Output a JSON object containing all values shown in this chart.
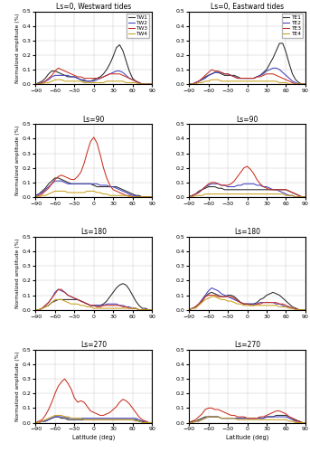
{
  "titles_left": [
    "Ls=0, Westward tides",
    "Ls=90",
    "Ls=180",
    "Ls=270"
  ],
  "titles_right": [
    "Ls=0, Eastward tides",
    "Ls=90",
    "Ls=180",
    "Ls=270"
  ],
  "legend_left": [
    "TW1",
    "TW2",
    "TW3",
    "TW4"
  ],
  "legend_right": [
    "TE1",
    "TE2",
    "TE3",
    "TE4"
  ],
  "colors": [
    "#2a2a2a",
    "#4040c0",
    "#c83020",
    "#c8a020"
  ],
  "ylabel": "Normalized amplitude (%)",
  "xlabel": "Latitude (deg)",
  "xlim": [
    -90,
    90
  ],
  "ylim": [
    0,
    0.5
  ],
  "yticks": [
    0.0,
    0.1,
    0.2,
    0.3,
    0.4,
    0.5
  ],
  "xticks": [
    -90,
    -60,
    -30,
    0,
    30,
    60,
    90
  ],
  "lat": [
    -90,
    -85,
    -80,
    -75,
    -70,
    -65,
    -60,
    -55,
    -50,
    -45,
    -40,
    -35,
    -30,
    -25,
    -20,
    -15,
    -10,
    -5,
    0,
    5,
    10,
    15,
    20,
    25,
    30,
    35,
    40,
    45,
    50,
    55,
    60,
    65,
    70,
    75,
    80,
    85,
    90
  ],
  "data": {
    "W_0": [
      [
        0.0,
        0.01,
        0.02,
        0.04,
        0.07,
        0.09,
        0.09,
        0.08,
        0.07,
        0.06,
        0.05,
        0.05,
        0.05,
        0.04,
        0.03,
        0.02,
        0.02,
        0.02,
        0.03,
        0.04,
        0.05,
        0.07,
        0.1,
        0.14,
        0.19,
        0.25,
        0.27,
        0.23,
        0.16,
        0.09,
        0.04,
        0.02,
        0.01,
        0.0,
        0.0,
        0.0,
        0.0
      ],
      [
        0.0,
        0.0,
        0.01,
        0.02,
        0.03,
        0.05,
        0.06,
        0.06,
        0.06,
        0.06,
        0.06,
        0.05,
        0.05,
        0.04,
        0.03,
        0.03,
        0.02,
        0.02,
        0.02,
        0.03,
        0.04,
        0.05,
        0.06,
        0.07,
        0.08,
        0.09,
        0.09,
        0.08,
        0.06,
        0.04,
        0.03,
        0.02,
        0.01,
        0.0,
        0.0,
        0.0,
        0.0
      ],
      [
        0.0,
        0.0,
        0.01,
        0.02,
        0.04,
        0.06,
        0.09,
        0.11,
        0.1,
        0.09,
        0.08,
        0.07,
        0.06,
        0.05,
        0.05,
        0.04,
        0.04,
        0.04,
        0.04,
        0.04,
        0.04,
        0.05,
        0.06,
        0.07,
        0.07,
        0.07,
        0.07,
        0.06,
        0.05,
        0.04,
        0.03,
        0.02,
        0.01,
        0.0,
        0.0,
        0.0,
        0.0
      ],
      [
        0.0,
        0.0,
        0.0,
        0.01,
        0.01,
        0.02,
        0.03,
        0.03,
        0.03,
        0.02,
        0.02,
        0.02,
        0.02,
        0.02,
        0.02,
        0.01,
        0.01,
        0.01,
        0.01,
        0.01,
        0.01,
        0.01,
        0.02,
        0.02,
        0.02,
        0.02,
        0.02,
        0.02,
        0.01,
        0.01,
        0.01,
        0.01,
        0.0,
        0.0,
        0.0,
        0.0,
        0.0
      ]
    ],
    "E_0": [
      [
        0.0,
        0.0,
        0.01,
        0.02,
        0.03,
        0.05,
        0.06,
        0.07,
        0.08,
        0.08,
        0.07,
        0.06,
        0.06,
        0.06,
        0.06,
        0.05,
        0.04,
        0.04,
        0.04,
        0.04,
        0.04,
        0.05,
        0.06,
        0.08,
        0.1,
        0.14,
        0.18,
        0.23,
        0.28,
        0.28,
        0.22,
        0.14,
        0.07,
        0.03,
        0.01,
        0.0,
        0.0
      ],
      [
        0.0,
        0.0,
        0.01,
        0.02,
        0.03,
        0.04,
        0.06,
        0.07,
        0.08,
        0.08,
        0.08,
        0.07,
        0.07,
        0.06,
        0.05,
        0.04,
        0.04,
        0.04,
        0.04,
        0.04,
        0.04,
        0.05,
        0.06,
        0.07,
        0.09,
        0.1,
        0.11,
        0.11,
        0.1,
        0.08,
        0.06,
        0.04,
        0.02,
        0.01,
        0.0,
        0.0,
        0.0
      ],
      [
        0.0,
        0.0,
        0.01,
        0.02,
        0.04,
        0.06,
        0.08,
        0.1,
        0.09,
        0.09,
        0.08,
        0.07,
        0.07,
        0.06,
        0.05,
        0.04,
        0.04,
        0.04,
        0.04,
        0.04,
        0.04,
        0.05,
        0.05,
        0.06,
        0.07,
        0.07,
        0.07,
        0.06,
        0.05,
        0.04,
        0.03,
        0.02,
        0.01,
        0.0,
        0.0,
        0.0,
        0.0
      ],
      [
        0.0,
        0.0,
        0.0,
        0.01,
        0.01,
        0.02,
        0.02,
        0.03,
        0.03,
        0.03,
        0.02,
        0.02,
        0.02,
        0.02,
        0.02,
        0.02,
        0.02,
        0.02,
        0.02,
        0.02,
        0.02,
        0.02,
        0.02,
        0.02,
        0.02,
        0.02,
        0.02,
        0.02,
        0.01,
        0.01,
        0.01,
        0.0,
        0.0,
        0.0,
        0.0,
        0.0,
        0.0
      ]
    ],
    "W_90": [
      [
        0.01,
        0.02,
        0.04,
        0.06,
        0.09,
        0.11,
        0.13,
        0.13,
        0.12,
        0.11,
        0.1,
        0.09,
        0.09,
        0.09,
        0.09,
        0.09,
        0.09,
        0.09,
        0.08,
        0.07,
        0.07,
        0.07,
        0.07,
        0.07,
        0.07,
        0.07,
        0.06,
        0.05,
        0.04,
        0.03,
        0.02,
        0.01,
        0.01,
        0.0,
        0.0,
        0.0,
        0.0
      ],
      [
        0.01,
        0.02,
        0.03,
        0.05,
        0.07,
        0.09,
        0.11,
        0.11,
        0.11,
        0.1,
        0.09,
        0.09,
        0.09,
        0.09,
        0.09,
        0.09,
        0.09,
        0.09,
        0.09,
        0.09,
        0.08,
        0.08,
        0.08,
        0.07,
        0.07,
        0.06,
        0.05,
        0.04,
        0.03,
        0.02,
        0.01,
        0.01,
        0.0,
        0.0,
        0.0,
        0.0,
        0.0
      ],
      [
        0.0,
        0.01,
        0.02,
        0.04,
        0.06,
        0.09,
        0.12,
        0.14,
        0.15,
        0.14,
        0.13,
        0.12,
        0.12,
        0.14,
        0.17,
        0.23,
        0.31,
        0.38,
        0.41,
        0.37,
        0.29,
        0.2,
        0.13,
        0.08,
        0.05,
        0.04,
        0.03,
        0.02,
        0.01,
        0.01,
        0.0,
        0.0,
        0.0,
        0.0,
        0.0,
        0.0,
        0.0
      ],
      [
        0.0,
        0.0,
        0.01,
        0.01,
        0.02,
        0.03,
        0.04,
        0.04,
        0.04,
        0.04,
        0.03,
        0.03,
        0.03,
        0.03,
        0.03,
        0.03,
        0.04,
        0.04,
        0.04,
        0.03,
        0.03,
        0.02,
        0.02,
        0.01,
        0.01,
        0.01,
        0.01,
        0.01,
        0.01,
        0.0,
        0.0,
        0.0,
        0.0,
        0.0,
        0.0,
        0.0,
        0.0
      ]
    ],
    "E_90": [
      [
        0.0,
        0.01,
        0.02,
        0.04,
        0.05,
        0.06,
        0.07,
        0.07,
        0.07,
        0.06,
        0.06,
        0.05,
        0.05,
        0.05,
        0.05,
        0.05,
        0.05,
        0.05,
        0.05,
        0.05,
        0.05,
        0.05,
        0.05,
        0.05,
        0.05,
        0.05,
        0.05,
        0.05,
        0.05,
        0.05,
        0.05,
        0.04,
        0.03,
        0.02,
        0.01,
        0.0,
        0.0
      ],
      [
        0.0,
        0.01,
        0.02,
        0.03,
        0.05,
        0.07,
        0.08,
        0.09,
        0.09,
        0.09,
        0.08,
        0.08,
        0.07,
        0.07,
        0.07,
        0.08,
        0.08,
        0.09,
        0.09,
        0.09,
        0.09,
        0.08,
        0.08,
        0.07,
        0.07,
        0.06,
        0.05,
        0.05,
        0.04,
        0.03,
        0.02,
        0.01,
        0.01,
        0.0,
        0.0,
        0.0,
        0.0
      ],
      [
        0.0,
        0.01,
        0.02,
        0.03,
        0.05,
        0.07,
        0.09,
        0.1,
        0.1,
        0.09,
        0.08,
        0.08,
        0.08,
        0.09,
        0.11,
        0.14,
        0.17,
        0.2,
        0.21,
        0.19,
        0.16,
        0.12,
        0.09,
        0.07,
        0.06,
        0.05,
        0.05,
        0.05,
        0.05,
        0.05,
        0.05,
        0.04,
        0.03,
        0.02,
        0.01,
        0.0,
        0.0
      ],
      [
        0.0,
        0.0,
        0.01,
        0.01,
        0.01,
        0.02,
        0.02,
        0.02,
        0.02,
        0.02,
        0.02,
        0.02,
        0.02,
        0.02,
        0.02,
        0.02,
        0.02,
        0.02,
        0.02,
        0.02,
        0.02,
        0.02,
        0.02,
        0.02,
        0.02,
        0.02,
        0.02,
        0.02,
        0.02,
        0.02,
        0.01,
        0.01,
        0.01,
        0.0,
        0.0,
        0.0,
        0.0
      ]
    ],
    "W_180": [
      [
        0.0,
        0.0,
        0.01,
        0.02,
        0.03,
        0.05,
        0.06,
        0.07,
        0.07,
        0.07,
        0.07,
        0.07,
        0.07,
        0.07,
        0.06,
        0.05,
        0.04,
        0.03,
        0.03,
        0.03,
        0.03,
        0.04,
        0.06,
        0.09,
        0.12,
        0.15,
        0.17,
        0.18,
        0.17,
        0.14,
        0.1,
        0.06,
        0.03,
        0.01,
        0.01,
        0.0,
        0.0
      ],
      [
        0.0,
        0.0,
        0.01,
        0.03,
        0.05,
        0.08,
        0.12,
        0.14,
        0.13,
        0.12,
        0.1,
        0.09,
        0.08,
        0.07,
        0.06,
        0.05,
        0.04,
        0.03,
        0.03,
        0.03,
        0.03,
        0.03,
        0.04,
        0.04,
        0.04,
        0.04,
        0.03,
        0.03,
        0.02,
        0.02,
        0.01,
        0.01,
        0.0,
        0.0,
        0.0,
        0.0,
        0.0
      ],
      [
        0.0,
        0.0,
        0.01,
        0.03,
        0.05,
        0.08,
        0.11,
        0.14,
        0.14,
        0.12,
        0.1,
        0.09,
        0.08,
        0.07,
        0.06,
        0.05,
        0.04,
        0.03,
        0.03,
        0.02,
        0.02,
        0.03,
        0.03,
        0.03,
        0.03,
        0.03,
        0.03,
        0.02,
        0.02,
        0.01,
        0.01,
        0.01,
        0.0,
        0.0,
        0.0,
        0.0,
        0.0
      ],
      [
        0.0,
        0.0,
        0.01,
        0.02,
        0.03,
        0.05,
        0.07,
        0.07,
        0.07,
        0.06,
        0.05,
        0.04,
        0.04,
        0.04,
        0.03,
        0.03,
        0.02,
        0.02,
        0.01,
        0.01,
        0.01,
        0.01,
        0.01,
        0.01,
        0.01,
        0.01,
        0.01,
        0.01,
        0.01,
        0.01,
        0.01,
        0.01,
        0.0,
        0.0,
        0.0,
        0.0,
        0.0
      ]
    ],
    "E_180": [
      [
        0.0,
        0.01,
        0.02,
        0.04,
        0.06,
        0.09,
        0.11,
        0.12,
        0.11,
        0.1,
        0.09,
        0.09,
        0.1,
        0.1,
        0.09,
        0.07,
        0.05,
        0.04,
        0.04,
        0.04,
        0.04,
        0.05,
        0.07,
        0.08,
        0.1,
        0.11,
        0.12,
        0.11,
        0.1,
        0.08,
        0.06,
        0.04,
        0.02,
        0.01,
        0.0,
        0.0,
        0.0
      ],
      [
        0.0,
        0.01,
        0.02,
        0.04,
        0.07,
        0.1,
        0.13,
        0.15,
        0.14,
        0.13,
        0.11,
        0.1,
        0.09,
        0.08,
        0.07,
        0.06,
        0.05,
        0.04,
        0.04,
        0.04,
        0.04,
        0.04,
        0.05,
        0.05,
        0.05,
        0.05,
        0.05,
        0.04,
        0.04,
        0.03,
        0.02,
        0.02,
        0.01,
        0.01,
        0.0,
        0.0,
        0.0
      ],
      [
        0.0,
        0.01,
        0.02,
        0.04,
        0.06,
        0.09,
        0.1,
        0.1,
        0.1,
        0.09,
        0.09,
        0.09,
        0.09,
        0.09,
        0.08,
        0.06,
        0.05,
        0.04,
        0.04,
        0.03,
        0.03,
        0.04,
        0.04,
        0.05,
        0.05,
        0.05,
        0.05,
        0.05,
        0.04,
        0.04,
        0.03,
        0.02,
        0.01,
        0.01,
        0.0,
        0.0,
        0.0
      ],
      [
        0.0,
        0.01,
        0.01,
        0.03,
        0.05,
        0.07,
        0.08,
        0.09,
        0.09,
        0.08,
        0.07,
        0.07,
        0.06,
        0.06,
        0.05,
        0.04,
        0.04,
        0.03,
        0.03,
        0.03,
        0.03,
        0.03,
        0.03,
        0.03,
        0.03,
        0.03,
        0.03,
        0.03,
        0.02,
        0.02,
        0.02,
        0.01,
        0.01,
        0.0,
        0.0,
        0.0,
        0.0
      ]
    ],
    "W_270": [
      [
        0.0,
        0.0,
        0.01,
        0.01,
        0.02,
        0.03,
        0.04,
        0.04,
        0.03,
        0.03,
        0.02,
        0.02,
        0.02,
        0.02,
        0.02,
        0.02,
        0.02,
        0.02,
        0.02,
        0.02,
        0.02,
        0.02,
        0.02,
        0.02,
        0.02,
        0.02,
        0.02,
        0.02,
        0.02,
        0.02,
        0.02,
        0.02,
        0.01,
        0.01,
        0.0,
        0.0,
        0.0
      ],
      [
        0.0,
        0.0,
        0.01,
        0.01,
        0.02,
        0.03,
        0.04,
        0.04,
        0.04,
        0.04,
        0.03,
        0.03,
        0.03,
        0.03,
        0.03,
        0.03,
        0.03,
        0.03,
        0.03,
        0.03,
        0.03,
        0.03,
        0.03,
        0.03,
        0.03,
        0.03,
        0.03,
        0.03,
        0.03,
        0.03,
        0.03,
        0.03,
        0.02,
        0.01,
        0.01,
        0.0,
        0.0
      ],
      [
        0.0,
        0.01,
        0.02,
        0.05,
        0.09,
        0.14,
        0.2,
        0.25,
        0.28,
        0.3,
        0.27,
        0.23,
        0.17,
        0.14,
        0.15,
        0.14,
        0.11,
        0.08,
        0.07,
        0.06,
        0.05,
        0.05,
        0.06,
        0.07,
        0.09,
        0.11,
        0.14,
        0.16,
        0.15,
        0.13,
        0.1,
        0.07,
        0.04,
        0.02,
        0.01,
        0.0,
        0.0
      ],
      [
        0.0,
        0.0,
        0.01,
        0.02,
        0.03,
        0.04,
        0.05,
        0.05,
        0.05,
        0.04,
        0.04,
        0.03,
        0.03,
        0.03,
        0.03,
        0.02,
        0.02,
        0.02,
        0.02,
        0.02,
        0.02,
        0.02,
        0.02,
        0.02,
        0.02,
        0.02,
        0.02,
        0.02,
        0.02,
        0.02,
        0.02,
        0.01,
        0.01,
        0.0,
        0.0,
        0.0,
        0.0
      ]
    ],
    "E_270": [
      [
        0.0,
        0.01,
        0.01,
        0.02,
        0.03,
        0.04,
        0.04,
        0.04,
        0.04,
        0.04,
        0.03,
        0.03,
        0.03,
        0.03,
        0.03,
        0.03,
        0.03,
        0.03,
        0.03,
        0.03,
        0.03,
        0.03,
        0.03,
        0.03,
        0.04,
        0.04,
        0.04,
        0.05,
        0.05,
        0.05,
        0.05,
        0.04,
        0.03,
        0.02,
        0.01,
        0.0,
        0.0
      ],
      [
        0.0,
        0.0,
        0.01,
        0.01,
        0.02,
        0.03,
        0.04,
        0.04,
        0.04,
        0.04,
        0.03,
        0.03,
        0.03,
        0.03,
        0.03,
        0.03,
        0.03,
        0.03,
        0.03,
        0.03,
        0.03,
        0.03,
        0.03,
        0.03,
        0.04,
        0.04,
        0.04,
        0.04,
        0.04,
        0.04,
        0.04,
        0.03,
        0.02,
        0.01,
        0.01,
        0.0,
        0.0
      ],
      [
        0.0,
        0.01,
        0.02,
        0.04,
        0.06,
        0.09,
        0.1,
        0.1,
        0.09,
        0.09,
        0.08,
        0.07,
        0.06,
        0.05,
        0.05,
        0.04,
        0.04,
        0.04,
        0.03,
        0.03,
        0.03,
        0.03,
        0.04,
        0.04,
        0.05,
        0.06,
        0.07,
        0.08,
        0.08,
        0.07,
        0.06,
        0.04,
        0.03,
        0.01,
        0.01,
        0.0,
        0.0
      ],
      [
        0.0,
        0.0,
        0.01,
        0.01,
        0.02,
        0.03,
        0.04,
        0.04,
        0.04,
        0.04,
        0.03,
        0.03,
        0.03,
        0.03,
        0.03,
        0.02,
        0.02,
        0.02,
        0.02,
        0.02,
        0.02,
        0.02,
        0.02,
        0.02,
        0.02,
        0.02,
        0.02,
        0.02,
        0.02,
        0.02,
        0.02,
        0.01,
        0.01,
        0.0,
        0.0,
        0.0,
        0.0
      ]
    ]
  }
}
